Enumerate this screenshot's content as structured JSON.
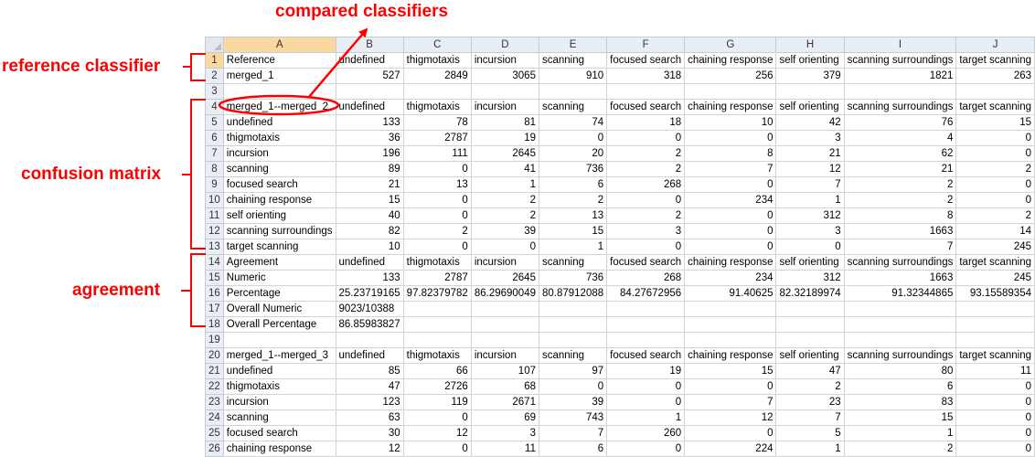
{
  "columns": [
    "A",
    "B",
    "C",
    "D",
    "E",
    "F",
    "G",
    "H",
    "I",
    "J"
  ],
  "rows": [
    {
      "n": "1",
      "cells": [
        "Reference",
        "undefined",
        "thigmotaxis",
        "incursion",
        "scanning",
        "focused search",
        "chaining response",
        "self orienting",
        "scanning surroundings",
        "target scanning"
      ]
    },
    {
      "n": "2",
      "cells": [
        "merged_1",
        "527",
        "2849",
        "3065",
        "910",
        "318",
        "256",
        "379",
        "1821",
        "263"
      ]
    },
    {
      "n": "3",
      "cells": [
        "",
        "",
        "",
        "",
        "",
        "",
        "",
        "",
        "",
        ""
      ]
    },
    {
      "n": "4",
      "cells": [
        "merged_1--merged_2",
        "undefined",
        "thigmotaxis",
        "incursion",
        "scanning",
        "focused search",
        "chaining response",
        "self orienting",
        "scanning surroundings",
        "target scanning"
      ]
    },
    {
      "n": "5",
      "cells": [
        "undefined",
        "133",
        "78",
        "81",
        "74",
        "18",
        "10",
        "42",
        "76",
        "15"
      ]
    },
    {
      "n": "6",
      "cells": [
        "thigmotaxis",
        "36",
        "2787",
        "19",
        "0",
        "0",
        "0",
        "3",
        "4",
        "0"
      ]
    },
    {
      "n": "7",
      "cells": [
        "incursion",
        "196",
        "111",
        "2645",
        "20",
        "2",
        "8",
        "21",
        "62",
        "0"
      ]
    },
    {
      "n": "8",
      "cells": [
        "scanning",
        "89",
        "0",
        "41",
        "736",
        "2",
        "7",
        "12",
        "21",
        "2"
      ]
    },
    {
      "n": "9",
      "cells": [
        "focused search",
        "21",
        "13",
        "1",
        "6",
        "268",
        "0",
        "7",
        "2",
        "0"
      ]
    },
    {
      "n": "10",
      "cells": [
        "chaining response",
        "15",
        "0",
        "2",
        "2",
        "0",
        "234",
        "1",
        "2",
        "0"
      ]
    },
    {
      "n": "11",
      "cells": [
        "self orienting",
        "40",
        "0",
        "2",
        "13",
        "2",
        "0",
        "312",
        "8",
        "2"
      ]
    },
    {
      "n": "12",
      "cells": [
        "scanning surroundings",
        "82",
        "2",
        "39",
        "15",
        "3",
        "0",
        "3",
        "1663",
        "14"
      ]
    },
    {
      "n": "13",
      "cells": [
        "target scanning",
        "10",
        "0",
        "0",
        "1",
        "0",
        "0",
        "0",
        "7",
        "245"
      ]
    },
    {
      "n": "14",
      "cells": [
        "Agreement",
        "undefined",
        "thigmotaxis",
        "incursion",
        "scanning",
        "focused search",
        "chaining response",
        "self orienting",
        "scanning surroundings",
        "target scanning"
      ]
    },
    {
      "n": "15",
      "cells": [
        "Numeric",
        "133",
        "2787",
        "2645",
        "736",
        "268",
        "234",
        "312",
        "1663",
        "245"
      ]
    },
    {
      "n": "16",
      "cells": [
        "Percentage",
        "25.23719165",
        "97.82379782",
        "86.29690049",
        "80.87912088",
        "84.27672956",
        "91.40625",
        "82.32189974",
        "91.32344865",
        "93.15589354"
      ]
    },
    {
      "n": "17",
      "cells": [
        "Overall Numeric",
        "9023/10388",
        "",
        "",
        "",
        "",
        "",
        "",
        "",
        ""
      ]
    },
    {
      "n": "18",
      "cells": [
        "Overall Percentage",
        "86.85983827",
        "",
        "",
        "",
        "",
        "",
        "",
        "",
        ""
      ]
    },
    {
      "n": "19",
      "cells": [
        "",
        "",
        "",
        "",
        "",
        "",
        "",
        "",
        "",
        ""
      ]
    },
    {
      "n": "20",
      "cells": [
        "merged_1--merged_3",
        "undefined",
        "thigmotaxis",
        "incursion",
        "scanning",
        "focused search",
        "chaining response",
        "self orienting",
        "scanning surroundings",
        "target scanning"
      ]
    },
    {
      "n": "21",
      "cells": [
        "undefined",
        "85",
        "66",
        "107",
        "97",
        "19",
        "15",
        "47",
        "80",
        "11"
      ]
    },
    {
      "n": "22",
      "cells": [
        "thigmotaxis",
        "47",
        "2726",
        "68",
        "0",
        "0",
        "0",
        "2",
        "6",
        "0"
      ]
    },
    {
      "n": "23",
      "cells": [
        "incursion",
        "123",
        "119",
        "2671",
        "39",
        "0",
        "7",
        "23",
        "83",
        "0"
      ]
    },
    {
      "n": "24",
      "cells": [
        "scanning",
        "63",
        "0",
        "69",
        "743",
        "1",
        "12",
        "7",
        "15",
        "0"
      ]
    },
    {
      "n": "25",
      "cells": [
        "focused search",
        "30",
        "12",
        "3",
        "7",
        "260",
        "0",
        "5",
        "1",
        "0"
      ]
    },
    {
      "n": "26",
      "cells": [
        "chaining response",
        "12",
        "0",
        "11",
        "6",
        "0",
        "224",
        "1",
        "2",
        "0"
      ]
    }
  ],
  "selected_row": "1",
  "annotations": {
    "compared_classifiers": "compared classifiers",
    "reference_classifier": "reference classifier",
    "confusion_matrix": "confusion matrix",
    "agreement": "agreement"
  },
  "colors": {
    "annotation": "#ff0000",
    "header_bg": "#e9edf4",
    "selected_header": "#f9d99f",
    "gridline": "#d4d4d4"
  }
}
